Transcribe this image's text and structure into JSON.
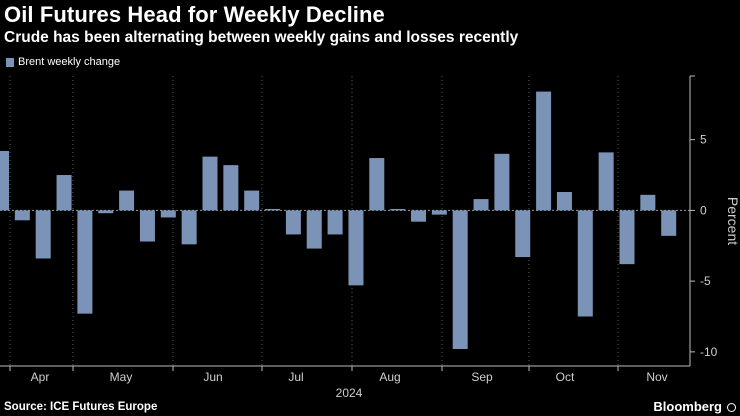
{
  "header": {
    "title": "Oil Futures Head for Weekly Decline",
    "subtitle": "Crude has been alternating between weekly gains and losses recently"
  },
  "footer": {
    "source": "Source: ICE Futures Europe",
    "brand": "Bloomberg"
  },
  "colors": {
    "bar": "#7b93b7",
    "background": "#000000",
    "grid": "#5a5a5a",
    "text": "#cfcfcf"
  },
  "chart_data": {
    "type": "bar",
    "legend": "Brent weekly change",
    "ylabel": "Percent",
    "year_label": "2024",
    "ylim": [
      -11,
      9.5
    ],
    "yticks": [
      5,
      0,
      -5,
      -10
    ],
    "month_labels": [
      "Apr",
      "May",
      "Jun",
      "Jul",
      "Aug",
      "Sep",
      "Oct",
      "Nov"
    ],
    "grid": "vertical",
    "values": [
      4.2,
      -0.7,
      -3.4,
      2.5,
      -7.3,
      -0.2,
      1.4,
      -2.2,
      -0.5,
      -2.4,
      3.8,
      3.2,
      1.4,
      0.1,
      -1.7,
      -2.7,
      -1.7,
      -5.3,
      3.7,
      0.1,
      -0.8,
      -0.3,
      -9.8,
      0.8,
      4.0,
      -3.3,
      8.4,
      1.3,
      -7.5,
      4.1,
      -3.8,
      1.1,
      -1.8
    ]
  }
}
